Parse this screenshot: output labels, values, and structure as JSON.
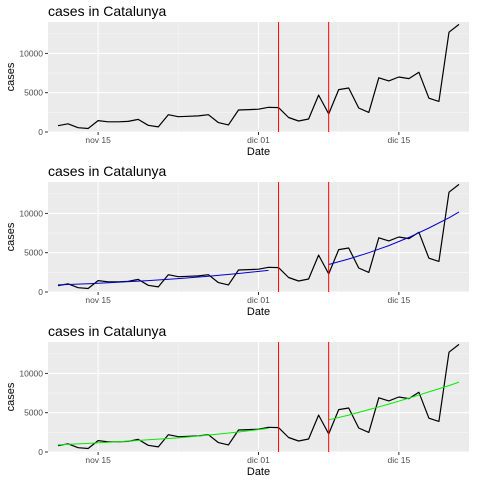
{
  "colors": {
    "panel_background": "#ebebeb",
    "grid_major": "#ffffff",
    "grid_minor": "#f5f5f5",
    "series_line": "#000000",
    "vline": "#ff0000",
    "fit_panel_2": "#0000cc",
    "fit_panel_3": "#00ee00"
  },
  "chart_data": [
    {
      "type": "line",
      "title": "cases in Catalunya",
      "xlabel": "Date",
      "ylabel": "cases",
      "x_tick_labels": [
        "nov 15",
        "dic 01",
        "dic 15"
      ],
      "y_tick_labels": [
        "0",
        "5000",
        "10000"
      ],
      "x_ticks": [
        "2020-11-15",
        "2020-12-01",
        "2020-12-15"
      ],
      "y_ticks": [
        0,
        5000,
        10000
      ],
      "xlim": [
        "2020-11-10",
        "2020-12-22"
      ],
      "ylim": [
        0,
        14000
      ],
      "grid": true,
      "vlines": [
        "2020-12-03",
        "2020-12-08"
      ],
      "series": [
        {
          "x": [
            "2020-11-11",
            "2020-11-12",
            "2020-11-13",
            "2020-11-14",
            "2020-11-15",
            "2020-11-16",
            "2020-11-17",
            "2020-11-18",
            "2020-11-19",
            "2020-11-20",
            "2020-11-21",
            "2020-11-22",
            "2020-11-23",
            "2020-11-24",
            "2020-11-25",
            "2020-11-26",
            "2020-11-27",
            "2020-11-28",
            "2020-11-29",
            "2020-11-30",
            "2020-12-01",
            "2020-12-02",
            "2020-12-03",
            "2020-12-04",
            "2020-12-05",
            "2020-12-06",
            "2020-12-07",
            "2020-12-08",
            "2020-12-09",
            "2020-12-10",
            "2020-12-11",
            "2020-12-12",
            "2020-12-13",
            "2020-12-14",
            "2020-12-15",
            "2020-12-16",
            "2020-12-17",
            "2020-12-18",
            "2020-12-19",
            "2020-12-20",
            "2020-12-21"
          ],
          "y": [
            800,
            1050,
            550,
            450,
            1450,
            1300,
            1300,
            1350,
            1600,
            850,
            650,
            2200,
            1950,
            2000,
            2050,
            2200,
            1200,
            900,
            2800,
            2850,
            2900,
            3150,
            3100,
            1850,
            1400,
            1650,
            4700,
            2300,
            5400,
            5600,
            3050,
            2500,
            6900,
            6500,
            7000,
            6800,
            7600,
            4300,
            3900,
            12700,
            13700
          ]
        }
      ],
      "fits": []
    },
    {
      "type": "line",
      "title": "cases in Catalunya",
      "xlabel": "Date",
      "ylabel": "cases",
      "x_tick_labels": [
        "nov 15",
        "dic 01",
        "dic 15"
      ],
      "y_tick_labels": [
        "0",
        "5000",
        "10000"
      ],
      "x_ticks": [
        "2020-11-15",
        "2020-12-01",
        "2020-12-15"
      ],
      "y_ticks": [
        0,
        5000,
        10000
      ],
      "xlim": [
        "2020-11-10",
        "2020-12-22"
      ],
      "ylim": [
        0,
        14000
      ],
      "grid": true,
      "vlines": [
        "2020-12-03",
        "2020-12-08"
      ],
      "series": [
        {
          "x": [
            "2020-11-11",
            "2020-11-12",
            "2020-11-13",
            "2020-11-14",
            "2020-11-15",
            "2020-11-16",
            "2020-11-17",
            "2020-11-18",
            "2020-11-19",
            "2020-11-20",
            "2020-11-21",
            "2020-11-22",
            "2020-11-23",
            "2020-11-24",
            "2020-11-25",
            "2020-11-26",
            "2020-11-27",
            "2020-11-28",
            "2020-11-29",
            "2020-11-30",
            "2020-12-01",
            "2020-12-02",
            "2020-12-03",
            "2020-12-04",
            "2020-12-05",
            "2020-12-06",
            "2020-12-07",
            "2020-12-08",
            "2020-12-09",
            "2020-12-10",
            "2020-12-11",
            "2020-12-12",
            "2020-12-13",
            "2020-12-14",
            "2020-12-15",
            "2020-12-16",
            "2020-12-17",
            "2020-12-18",
            "2020-12-19",
            "2020-12-20",
            "2020-12-21"
          ],
          "y": [
            800,
            1050,
            550,
            450,
            1450,
            1300,
            1300,
            1350,
            1600,
            850,
            650,
            2200,
            1950,
            2000,
            2050,
            2200,
            1200,
            900,
            2800,
            2850,
            2900,
            3150,
            3100,
            1850,
            1400,
            1650,
            4700,
            2300,
            5400,
            5600,
            3050,
            2500,
            6900,
            6500,
            7000,
            6800,
            7600,
            4300,
            3900,
            12700,
            13700
          ]
        }
      ],
      "fits": [
        {
          "color": "#0000cc",
          "x": [
            "2020-11-11",
            "2020-11-14",
            "2020-11-17",
            "2020-11-20",
            "2020-11-23",
            "2020-11-26",
            "2020-11-29",
            "2020-12-02"
          ],
          "y": [
            900,
            1050,
            1250,
            1450,
            1700,
            2000,
            2350,
            2750
          ]
        },
        {
          "color": "#0000cc",
          "x": [
            "2020-12-08",
            "2020-12-10",
            "2020-12-12",
            "2020-12-14",
            "2020-12-16",
            "2020-12-18",
            "2020-12-20",
            "2020-12-21"
          ],
          "y": [
            3500,
            4200,
            5000,
            5900,
            6950,
            8150,
            9450,
            10200
          ]
        }
      ]
    },
    {
      "type": "line",
      "title": "cases in Catalunya",
      "xlabel": "Date",
      "ylabel": "cases",
      "x_tick_labels": [
        "nov 15",
        "dic 01",
        "dic 15"
      ],
      "y_tick_labels": [
        "0",
        "5000",
        "10000"
      ],
      "x_ticks": [
        "2020-11-15",
        "2020-12-01",
        "2020-12-15"
      ],
      "y_ticks": [
        0,
        5000,
        10000
      ],
      "xlim": [
        "2020-11-10",
        "2020-12-22"
      ],
      "ylim": [
        0,
        14000
      ],
      "grid": true,
      "vlines": [
        "2020-12-03",
        "2020-12-08"
      ],
      "series": [
        {
          "x": [
            "2020-11-11",
            "2020-11-12",
            "2020-11-13",
            "2020-11-14",
            "2020-11-15",
            "2020-11-16",
            "2020-11-17",
            "2020-11-18",
            "2020-11-19",
            "2020-11-20",
            "2020-11-21",
            "2020-11-22",
            "2020-11-23",
            "2020-11-24",
            "2020-11-25",
            "2020-11-26",
            "2020-11-27",
            "2020-11-28",
            "2020-11-29",
            "2020-11-30",
            "2020-12-01",
            "2020-12-02",
            "2020-12-03",
            "2020-12-04",
            "2020-12-05",
            "2020-12-06",
            "2020-12-07",
            "2020-12-08",
            "2020-12-09",
            "2020-12-10",
            "2020-12-11",
            "2020-12-12",
            "2020-12-13",
            "2020-12-14",
            "2020-12-15",
            "2020-12-16",
            "2020-12-17",
            "2020-12-18",
            "2020-12-19",
            "2020-12-20",
            "2020-12-21"
          ],
          "y": [
            800,
            1050,
            550,
            450,
            1450,
            1300,
            1300,
            1350,
            1600,
            850,
            650,
            2200,
            1950,
            2000,
            2050,
            2200,
            1200,
            900,
            2800,
            2850,
            2900,
            3150,
            3100,
            1850,
            1400,
            1650,
            4700,
            2300,
            5400,
            5600,
            3050,
            2500,
            6900,
            6500,
            7000,
            6800,
            7600,
            4300,
            3900,
            12700,
            13700
          ]
        }
      ],
      "fits": [
        {
          "color": "#00ee00",
          "x": [
            "2020-11-11",
            "2020-11-14",
            "2020-11-17",
            "2020-11-20",
            "2020-11-23",
            "2020-11-26",
            "2020-11-29",
            "2020-12-02"
          ],
          "y": [
            900,
            1100,
            1300,
            1550,
            1800,
            2150,
            2550,
            3000
          ]
        },
        {
          "color": "#00ee00",
          "x": [
            "2020-12-08",
            "2020-12-10",
            "2020-12-12",
            "2020-12-14",
            "2020-12-16",
            "2020-12-18",
            "2020-12-20",
            "2020-12-21"
          ],
          "y": [
            4100,
            4700,
            5400,
            6100,
            6850,
            7650,
            8450,
            8900
          ]
        }
      ]
    }
  ]
}
